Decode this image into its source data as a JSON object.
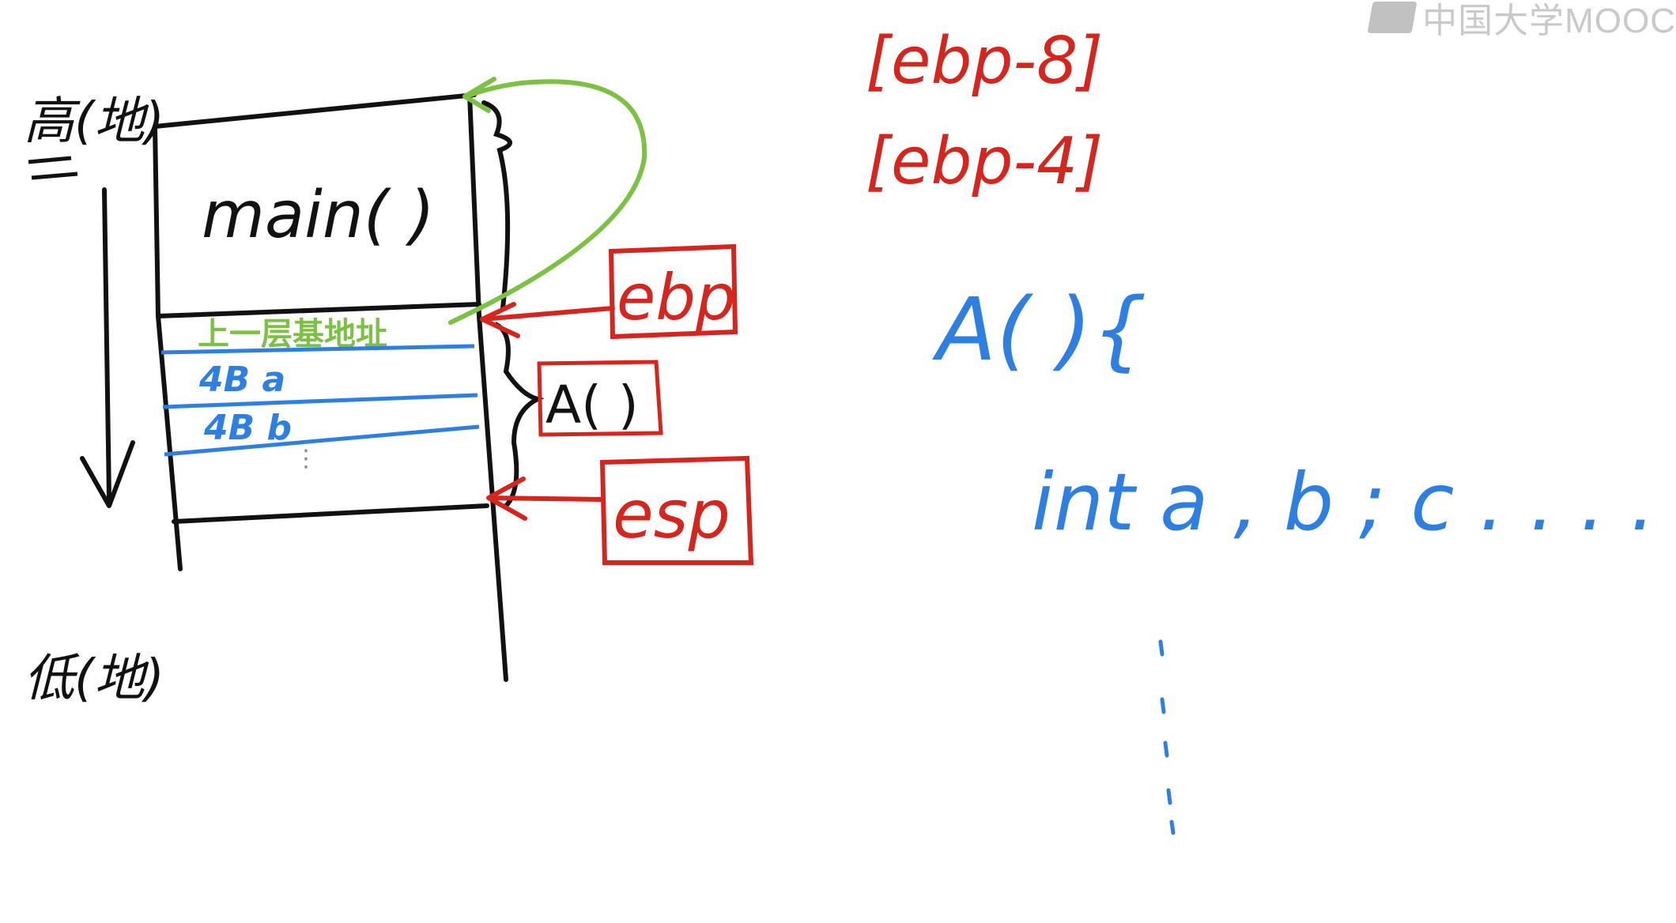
{
  "watermark": {
    "text": "中国大学MOOC",
    "icon": "mooc-logo-icon"
  },
  "labels": {
    "high_address": "高(地)",
    "low_address": "低(地)",
    "main_frame": "main( )",
    "prev_frame_addr": "上一层基地址",
    "var_a": "4B  a",
    "var_b": "4B  b",
    "ellipsis": "⋮",
    "frame_name": "A( )",
    "ebp_box": "ebp",
    "esp_box": "esp",
    "ebp_minus_8": "[ebp-8]",
    "ebp_minus_4": "[ebp-4]",
    "code_func": "A( ){",
    "code_decl": "int a , b ; c . . . .",
    "code_dots": "⋮"
  },
  "colors": {
    "ink": "#111111",
    "red": "#d4261f",
    "blue": "#2f7fe0",
    "green": "#7cc044"
  }
}
